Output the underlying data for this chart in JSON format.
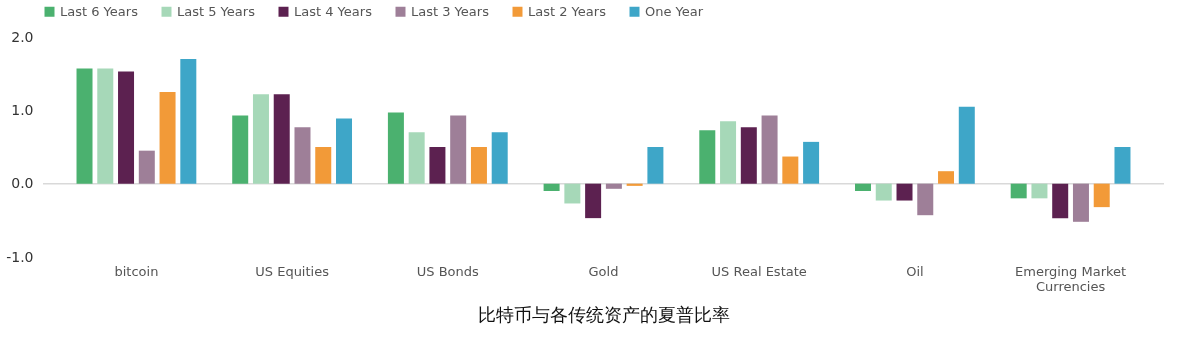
{
  "chart_data": {
    "type": "bar",
    "title": "比特币与各传统资产的夏普比率",
    "categories": [
      "bitcoin",
      "US Equities",
      "US Bonds",
      "Gold",
      "US Real Estate",
      "Oil",
      "Emerging Market Currencies"
    ],
    "series": [
      {
        "name": "Last 6 Years",
        "color": "#4bb16f",
        "values": [
          1.57,
          0.93,
          0.97,
          -0.1,
          0.73,
          -0.1,
          -0.2
        ]
      },
      {
        "name": "Last 5 Years",
        "color": "#a6d8b8",
        "values": [
          1.57,
          1.22,
          0.7,
          -0.27,
          0.85,
          -0.23,
          -0.2
        ]
      },
      {
        "name": "Last 4 Years",
        "color": "#5c2150",
        "values": [
          1.53,
          1.22,
          0.5,
          -0.47,
          0.77,
          -0.23,
          -0.47
        ]
      },
      {
        "name": "Last 3 Years",
        "color": "#9e7f98",
        "values": [
          0.45,
          0.77,
          0.93,
          -0.07,
          0.93,
          -0.43,
          -0.52
        ]
      },
      {
        "name": "Last 2 Years",
        "color": "#f29a38",
        "values": [
          1.25,
          0.5,
          0.5,
          -0.03,
          0.37,
          0.17,
          -0.32
        ]
      },
      {
        "name": "One Year",
        "color": "#3ea6c8",
        "values": [
          1.7,
          0.89,
          0.7,
          0.5,
          0.57,
          1.05,
          0.5
        ]
      }
    ],
    "ylim": [
      -1,
      2
    ],
    "yticks": [
      {
        "value": -1,
        "label": "-1.0"
      },
      {
        "value": 0,
        "label": "0.0"
      },
      {
        "value": 1,
        "label": "1.0"
      },
      {
        "value": 2,
        "label": "2.0"
      }
    ],
    "ref_lines": [
      {
        "axis": "y",
        "value": 0,
        "color": "#d9d9d9"
      }
    ],
    "grid": false,
    "legend": "top"
  }
}
